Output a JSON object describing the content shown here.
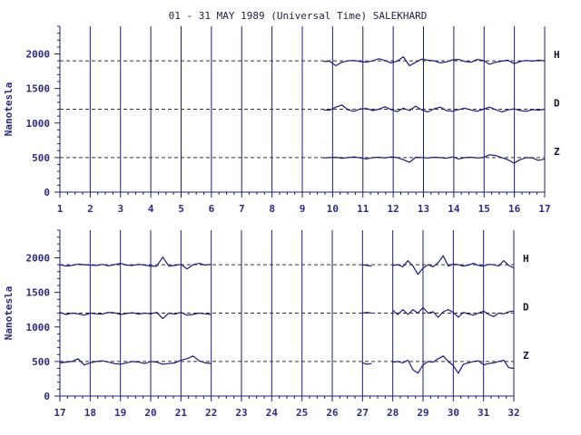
{
  "chart_data": {
    "title": "01 - 31 MAY 1989 (Universal Time) SALEKHARD",
    "type": "line",
    "ylabel": "Nanotesla",
    "ylim": [
      0,
      2400
    ],
    "yticks": [
      "0",
      "500",
      "1000",
      "1500",
      "2000"
    ],
    "baselines": [
      1900,
      1200,
      500
    ],
    "components": [
      "H",
      "D",
      "Z"
    ],
    "panels": [
      {
        "xticks": [
          "1",
          "2",
          "3",
          "4",
          "5",
          "6",
          "7",
          "8",
          "9",
          "10",
          "11",
          "12",
          "13",
          "14",
          "15",
          "16",
          "17"
        ],
        "xlim": [
          1,
          17
        ],
        "segments": [
          {
            "start": 9.7,
            "end": 17.0,
            "H": [
              1890,
              1895,
              1830,
              1880,
              1900,
              1905,
              1890,
              1880,
              1900,
              1930,
              1905,
              1870,
              1895,
              1960,
              1830,
              1880,
              1925,
              1910,
              1900,
              1870,
              1885,
              1915,
              1920,
              1890,
              1880,
              1920,
              1905,
              1850,
              1880,
              1895,
              1910,
              1860,
              1890,
              1905,
              1895,
              1910,
              1900
            ],
            "D": [
              1190,
              1185,
              1230,
              1260,
              1190,
              1170,
              1205,
              1210,
              1180,
              1200,
              1235,
              1195,
              1165,
              1215,
              1180,
              1245,
              1190,
              1160,
              1205,
              1230,
              1180,
              1170,
              1195,
              1215,
              1190,
              1170,
              1200,
              1230,
              1195,
              1160,
              1190,
              1205,
              1180,
              1170,
              1195,
              1185,
              1200
            ],
            "Z": [
              495,
              500,
              505,
              490,
              500,
              510,
              495,
              480,
              500,
              505,
              495,
              510,
              500,
              470,
              430,
              505,
              500,
              495,
              505,
              500,
              490,
              510,
              480,
              500,
              505,
              495,
              500,
              540,
              530,
              500,
              470,
              420,
              470,
              500,
              495,
              460,
              480
            ]
          }
        ]
      },
      {
        "xticks": [
          "17",
          "18",
          "19",
          "20",
          "21",
          "22",
          "23",
          "24",
          "25",
          "26",
          "27",
          "28",
          "29",
          "30",
          "31",
          "32"
        ],
        "xlim": [
          17,
          32
        ],
        "segments": [
          {
            "start": 17.0,
            "end": 22.0,
            "H": [
              1900,
              1880,
              1890,
              1910,
              1900,
              1895,
              1890,
              1905,
              1885,
              1900,
              1920,
              1895,
              1890,
              1905,
              1895,
              1880,
              1880,
              2010,
              1880,
              1890,
              1905,
              1840,
              1900,
              1920,
              1895,
              1905
            ],
            "D": [
              1210,
              1180,
              1200,
              1190,
              1170,
              1200,
              1190,
              1185,
              1210,
              1205,
              1180,
              1195,
              1205,
              1185,
              1200,
              1190,
              1210,
              1120,
              1200,
              1185,
              1210,
              1170,
              1180,
              1200,
              1190,
              1180
            ],
            "Z": [
              480,
              490,
              500,
              540,
              450,
              480,
              500,
              510,
              490,
              470,
              460,
              480,
              500,
              490,
              470,
              500,
              490,
              460,
              470,
              480,
              520,
              540,
              580,
              510,
              480,
              470
            ]
          },
          {
            "start": 27.0,
            "end": 27.3,
            "H": [
              1900,
              1890,
              1880
            ],
            "D": [
              1200,
              1210,
              1200
            ],
            "Z": [
              480,
              460,
              470
            ]
          },
          {
            "start": 28.0,
            "end": 32.0,
            "H": [
              1890,
              1900,
              1870,
              1960,
              1880,
              1760,
              1850,
              1900,
              1870,
              1930,
              2030,
              1880,
              1910,
              1900,
              1880,
              1895,
              1920,
              1890,
              1880,
              1905,
              1900,
              1880,
              1960,
              1890,
              1850
            ],
            "D": [
              1240,
              1180,
              1250,
              1180,
              1250,
              1200,
              1280,
              1200,
              1220,
              1140,
              1220,
              1250,
              1210,
              1140,
              1210,
              1190,
              1170,
              1200,
              1230,
              1180,
              1150,
              1200,
              1190,
              1220,
              1230
            ],
            "Z": [
              490,
              500,
              480,
              520,
              380,
              330,
              450,
              500,
              490,
              540,
              580,
              500,
              440,
              330,
              460,
              480,
              500,
              510,
              450,
              470,
              480,
              500,
              520,
              410,
              400
            ]
          }
        ]
      }
    ]
  }
}
